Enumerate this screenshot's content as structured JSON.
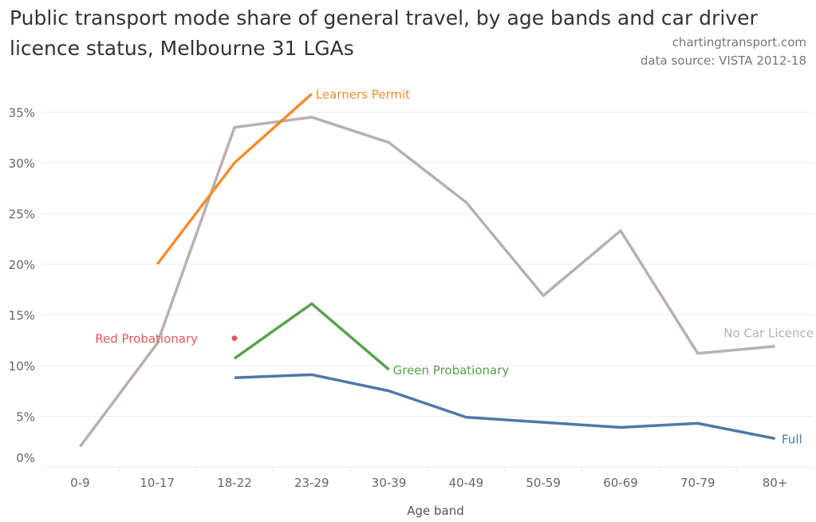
{
  "chart_data": {
    "type": "line",
    "title": "Public transport mode share of general travel, by age bands and car driver licence status, Melbourne 31 LGAs",
    "credit": "chartingtransport.com",
    "source": "data source: VISTA 2012-18",
    "xlabel": "Age band",
    "ylabel": "",
    "categories": [
      "0-9",
      "10-17",
      "18-22",
      "23-29",
      "30-39",
      "40-49",
      "50-59",
      "60-69",
      "70-79",
      "80+"
    ],
    "ylim": [
      0,
      37
    ],
    "yticks": [
      0,
      5,
      10,
      15,
      20,
      25,
      30,
      35
    ],
    "ytick_labels": [
      "0%",
      "5%",
      "10%",
      "15%",
      "20%",
      "25%",
      "30%",
      "35%"
    ],
    "grid": true,
    "series": [
      {
        "name": "No Car Licence",
        "color": "#bab0ac",
        "label_at": "80+",
        "values": [
          2.0,
          12.2,
          33.5,
          34.5,
          32.0,
          26.1,
          16.9,
          23.3,
          11.2,
          11.9
        ]
      },
      {
        "name": "Learners Permit",
        "color": "#f28e2b",
        "label_at": "23-29",
        "values": [
          null,
          20.0,
          30.0,
          36.8,
          null,
          null,
          null,
          null,
          null,
          null
        ]
      },
      {
        "name": "Red Probationary",
        "color": "#e15759",
        "label_at": "10-17",
        "values": [
          null,
          null,
          12.7,
          null,
          null,
          null,
          null,
          null,
          null,
          null
        ]
      },
      {
        "name": "Green Probationary",
        "color": "#59a14f",
        "label_at": "30-39",
        "values": [
          null,
          null,
          10.7,
          16.1,
          9.6,
          null,
          null,
          null,
          null,
          null
        ]
      },
      {
        "name": "Full",
        "color": "#4e79a7",
        "label_at": "80+",
        "values": [
          null,
          null,
          8.8,
          9.1,
          7.5,
          4.9,
          4.4,
          3.9,
          4.3,
          2.8
        ]
      }
    ]
  }
}
